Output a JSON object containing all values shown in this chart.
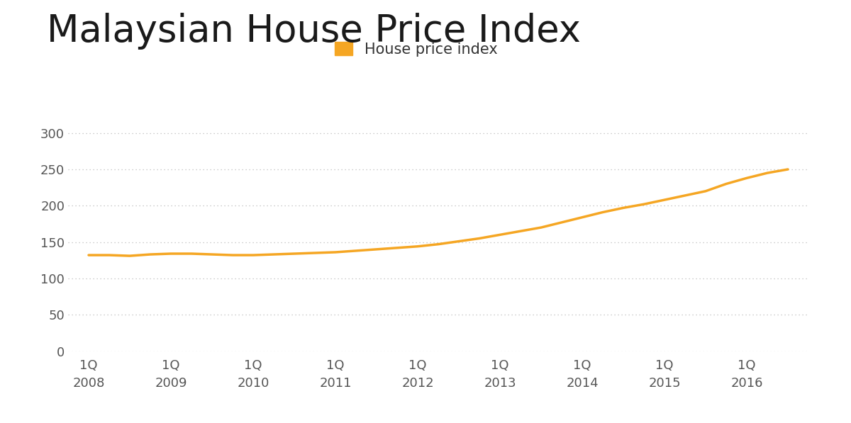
{
  "title": "Malaysian House Price Index",
  "title_fontsize": 38,
  "title_color": "#1a1a1a",
  "legend_label": "House price index",
  "legend_color": "#F5A623",
  "line_color": "#F5A623",
  "line_width": 2.5,
  "background_color": "#ffffff",
  "grid_color": "#bbbbbb",
  "tick_label_color": "#555555",
  "tick_label_fontsize": 13,
  "ylim": [
    0,
    320
  ],
  "yticks": [
    0,
    50,
    100,
    150,
    200,
    250,
    300
  ],
  "x_labels": [
    "1Q\n2008",
    "1Q\n2009",
    "1Q\n2010",
    "1Q\n2011",
    "1Q\n2012",
    "1Q\n2013",
    "1Q\n2014",
    "1Q\n2015",
    "1Q\n2016"
  ],
  "x_positions": [
    0,
    4,
    8,
    12,
    16,
    20,
    24,
    28,
    32
  ],
  "data_x": [
    0,
    1,
    2,
    3,
    4,
    5,
    6,
    7,
    8,
    9,
    10,
    11,
    12,
    13,
    14,
    15,
    16,
    17,
    18,
    19,
    20,
    21,
    22,
    23,
    24,
    25,
    26,
    27,
    28,
    29,
    30,
    31,
    32,
    33,
    34
  ],
  "data_y": [
    132,
    132,
    131,
    133,
    134,
    134,
    133,
    132,
    132,
    133,
    134,
    135,
    136,
    138,
    140,
    142,
    144,
    147,
    151,
    155,
    160,
    165,
    170,
    177,
    184,
    191,
    197,
    202,
    208,
    214,
    220,
    230,
    238,
    245,
    250
  ]
}
